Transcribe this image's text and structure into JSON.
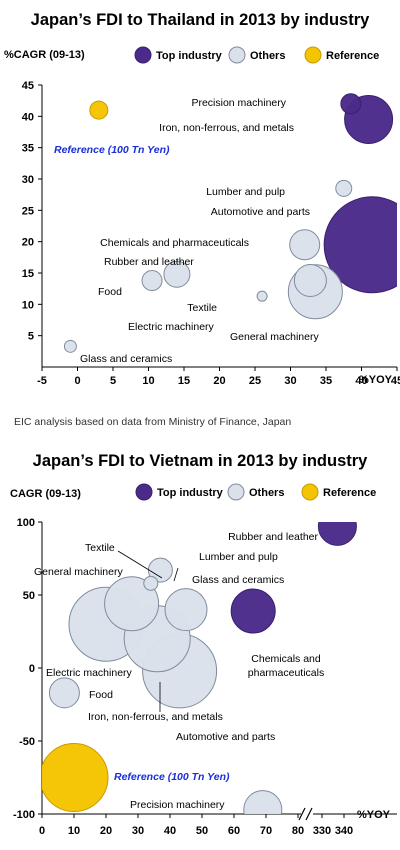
{
  "chart_data": [
    {
      "type": "scatter",
      "subtype": "bubble",
      "title": "Japan’s FDI to Thailand in 2013 by industry",
      "ylabel": "%CAGR (09-13)",
      "xlabel": "%YOY",
      "xlim": [
        -5,
        45
      ],
      "ylim": [
        0,
        45
      ],
      "xticks": [
        -5,
        0,
        5,
        10,
        15,
        20,
        25,
        30,
        35,
        40,
        45
      ],
      "yticks": [
        5,
        10,
        15,
        20,
        25,
        30,
        35,
        40,
        45
      ],
      "legend": [
        {
          "label": "Top industry",
          "color": "#4b2a8a"
        },
        {
          "label": "Others",
          "color": "#dbe1ea"
        },
        {
          "label": "Reference",
          "color": "#f5c400"
        }
      ],
      "legend_placement": "top",
      "note": "EIC analysis based on data from Ministry of Finance, Japan",
      "points": [
        {
          "label": "Precision  machinery",
          "x": 38.5,
          "y": 42,
          "r": 10,
          "group": "top"
        },
        {
          "label": "Iron, non-ferrous, and metals",
          "x": 41,
          "y": 39.5,
          "r": 24,
          "group": "top"
        },
        {
          "label": "Reference (100 Tn Yen)",
          "x": 3,
          "y": 41,
          "r": 9,
          "group": "reference"
        },
        {
          "label": "Lumber and pulp",
          "x": 37.5,
          "y": 28.5,
          "r": 8,
          "group": "other"
        },
        {
          "label": "Automotive and parts",
          "x": 41.5,
          "y": 19.5,
          "r": 48,
          "group": "top"
        },
        {
          "label": "Chemicals and  pharmaceuticals",
          "x": 32,
          "y": 19.5,
          "r": 15,
          "group": "other"
        },
        {
          "label": "Rubber and  leather",
          "x": 14,
          "y": 14.8,
          "r": 13,
          "group": "other"
        },
        {
          "label": "Food",
          "x": 10.5,
          "y": 13.8,
          "r": 10,
          "group": "other"
        },
        {
          "label": "Textile",
          "x": 26,
          "y": 11.3,
          "r": 5,
          "group": "other"
        },
        {
          "label": "Electric machinery",
          "x": 32.8,
          "y": 13.8,
          "r": 16,
          "group": "other"
        },
        {
          "label": "General machinery",
          "x": 33.5,
          "y": 12,
          "r": 27,
          "group": "other"
        },
        {
          "label": "Glass and ceramics",
          "x": -1,
          "y": 3.3,
          "r": 6,
          "group": "other"
        }
      ]
    },
    {
      "type": "scatter",
      "subtype": "bubble",
      "title": "Japan’s FDI to Vietnam in 2013 by industry",
      "ylabel": "CAGR (09-13)",
      "xlabel": "%YOY",
      "xlim": [
        0,
        340
      ],
      "ylim": [
        -100,
        100
      ],
      "xticks": [
        0,
        10,
        20,
        30,
        40,
        50,
        60,
        70,
        80,
        330,
        340
      ],
      "yticks": [
        -100,
        -50,
        0,
        50,
        100
      ],
      "axis_break": "between 80 and 330 on x-axis",
      "legend": [
        {
          "label": "Top industry",
          "color": "#4b2a8a"
        },
        {
          "label": "Others",
          "color": "#dbe1ea"
        },
        {
          "label": "Reference",
          "color": "#f5c400"
        }
      ],
      "legend_placement": "top",
      "points": [
        {
          "label": "Rubber and  leather",
          "x": 337,
          "y": 97,
          "r": 19,
          "group": "top"
        },
        {
          "label": "Textile",
          "x": 34,
          "y": 58,
          "r": 7,
          "group": "other"
        },
        {
          "label": "Lumber and pulp",
          "x": 37,
          "y": 67,
          "r": 12,
          "group": "other"
        },
        {
          "label": "General machinery",
          "x": 28,
          "y": 44,
          "r": 27,
          "group": "other"
        },
        {
          "label": "Glass and ceramics",
          "x": 45,
          "y": 40,
          "r": 21,
          "group": "other"
        },
        {
          "label": "Chemicals and pharmaceuticals",
          "x": 66,
          "y": 39,
          "r": 22,
          "group": "top"
        },
        {
          "label": "Electric machinery",
          "x": 20,
          "y": 30,
          "r": 37,
          "group": "other"
        },
        {
          "label": "Iron, non-ferrous, and metals",
          "x": 36,
          "y": 20,
          "r": 33,
          "group": "other"
        },
        {
          "label": "Automotive and parts",
          "x": 43,
          "y": -2,
          "r": 37,
          "group": "other"
        },
        {
          "label": "Food",
          "x": 7,
          "y": -17,
          "r": 15,
          "group": "other"
        },
        {
          "label": "Reference (100 Tn Yen)",
          "x": 10,
          "y": -75,
          "r": 34,
          "group": "reference"
        },
        {
          "label": "Precision  machinery",
          "x": 69,
          "y": -97,
          "r": 19,
          "group": "other"
        }
      ]
    }
  ]
}
